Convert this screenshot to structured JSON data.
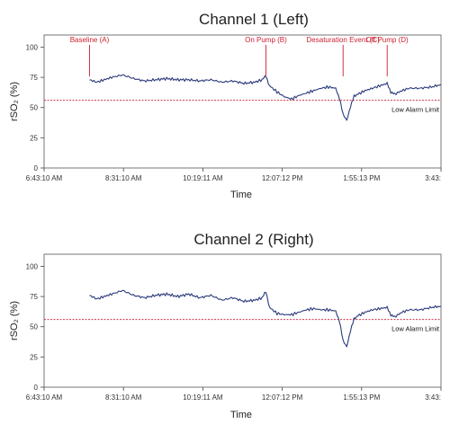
{
  "colors": {
    "trace": "#2b3a7a",
    "alarm": "#c8102e",
    "annotation": "#cc1f2e",
    "axis": "#444444"
  },
  "chart_data": [
    {
      "type": "line",
      "title": "Channel 1 (Left)",
      "xlabel": "Time",
      "ylabel": "rSO₂ (%)",
      "ylim": [
        0,
        110
      ],
      "xlim": [
        "6:43:10 AM",
        "3:43:14 PM"
      ],
      "yticks": [
        "0",
        "25",
        "50",
        "75",
        "100"
      ],
      "xticks": [
        "6:43:10 AM",
        "8:31:10 AM",
        "10:19:11 AM",
        "12:07:12 PM",
        "1:55:13 PM",
        "3:43:"
      ],
      "grid": false,
      "threshold": {
        "label": "Low Alarm Limit",
        "value": 56
      },
      "annotations": [
        {
          "label": "Baseline (A)",
          "time": "7:45 AM"
        },
        {
          "label": "On Pump (B)",
          "time": "11:45 AM"
        },
        {
          "label": "Desaturation Event (C)",
          "time": "1:30 PM"
        },
        {
          "label": "Off Pump (D)",
          "time": "2:30 PM"
        }
      ],
      "series": [
        {
          "x": [
            "7:45",
            "7:55",
            "8:05",
            "8:15",
            "8:30",
            "8:45",
            "9:00",
            "9:15",
            "9:30",
            "9:45",
            "10:00",
            "10:15",
            "10:30",
            "10:45",
            "11:00",
            "11:15",
            "11:30",
            "11:40",
            "11:45",
            "11:50",
            "12:00",
            "12:10",
            "12:20",
            "12:30",
            "12:40",
            "12:50",
            "13:00",
            "13:10",
            "13:20",
            "13:25",
            "13:30",
            "13:35",
            "13:40",
            "13:45",
            "13:50",
            "14:00",
            "14:10",
            "14:20",
            "14:30",
            "14:35",
            "14:40",
            "14:50",
            "15:00",
            "15:15",
            "15:30",
            "15:43"
          ],
          "y": [
            73,
            71,
            73,
            75,
            77,
            74,
            72,
            73,
            74,
            73,
            73,
            72,
            73,
            71,
            72,
            70,
            71,
            73,
            76,
            68,
            63,
            59,
            57,
            60,
            62,
            64,
            66,
            67,
            66,
            58,
            44,
            40,
            50,
            60,
            61,
            64,
            66,
            68,
            70,
            63,
            61,
            64,
            66,
            66,
            67,
            69
          ]
        }
      ]
    },
    {
      "type": "line",
      "title": "Channel 2 (Right)",
      "xlabel": "Time",
      "ylabel": "rSO₂ (%)",
      "ylim": [
        0,
        110
      ],
      "xlim": [
        "6:43:10 AM",
        "3:43:14 PM"
      ],
      "yticks": [
        "0",
        "25",
        "50",
        "75",
        "100"
      ],
      "xticks": [
        "6:43:10 AM",
        "8:31:10 AM",
        "10:19:11 AM",
        "12:07:12 PM",
        "1:55:13 PM",
        "3:43:"
      ],
      "grid": false,
      "threshold": {
        "label": "Low Alarm Limit",
        "value": 56
      },
      "annotations": [],
      "series": [
        {
          "x": [
            "7:45",
            "7:55",
            "8:05",
            "8:15",
            "8:30",
            "8:45",
            "9:00",
            "9:15",
            "9:30",
            "9:45",
            "10:00",
            "10:15",
            "10:30",
            "10:45",
            "11:00",
            "11:15",
            "11:30",
            "11:40",
            "11:45",
            "11:50",
            "12:00",
            "12:10",
            "12:20",
            "12:30",
            "12:40",
            "12:50",
            "13:00",
            "13:10",
            "13:20",
            "13:25",
            "13:30",
            "13:35",
            "13:40",
            "13:45",
            "13:50",
            "14:00",
            "14:10",
            "14:20",
            "14:30",
            "14:35",
            "14:40",
            "14:50",
            "15:00",
            "15:15",
            "15:30",
            "15:43"
          ],
          "y": [
            76,
            73,
            75,
            77,
            80,
            76,
            74,
            76,
            77,
            75,
            77,
            74,
            76,
            72,
            74,
            71,
            72,
            74,
            79,
            66,
            61,
            60,
            60,
            62,
            64,
            65,
            64,
            64,
            63,
            55,
            38,
            34,
            46,
            57,
            59,
            62,
            64,
            65,
            66,
            60,
            58,
            62,
            64,
            64,
            66,
            67
          ]
        }
      ]
    }
  ]
}
